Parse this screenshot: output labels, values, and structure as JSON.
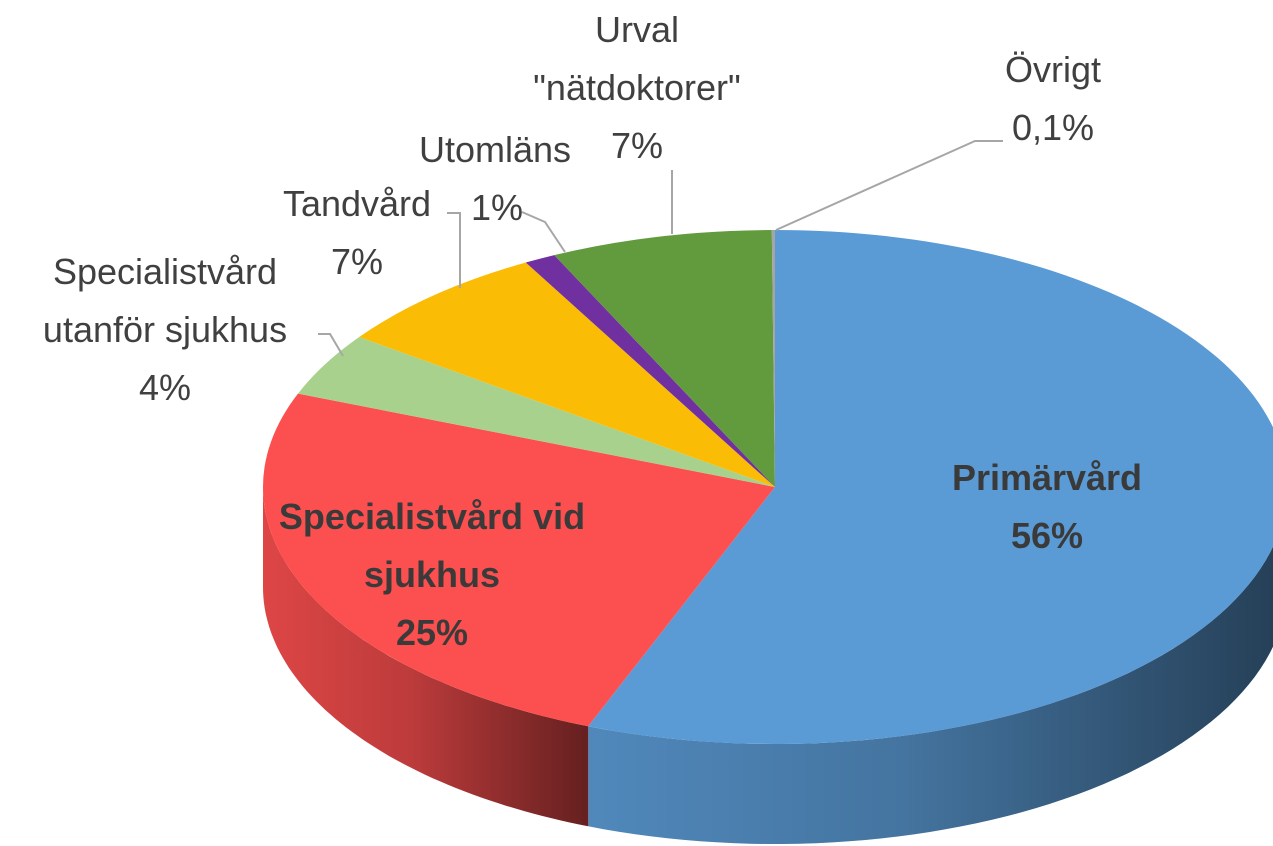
{
  "chart_data": {
    "type": "pie",
    "categories": [
      "Primärvård",
      "Specialistvård vid sjukhus",
      "Specialistvård utanför sjukhus",
      "Tandvård",
      "Utomläns",
      "Urval \"nätdoktorer\"",
      "Övrigt"
    ],
    "values": [
      56,
      25,
      4,
      7,
      1,
      7,
      0.1
    ],
    "value_labels": [
      "56%",
      "25%",
      "4%",
      "7%",
      "1%",
      "7%",
      "0,1%"
    ],
    "colors": [
      "#5b9bd5",
      "#fc4f4f",
      "#a9d18e",
      "#fbbc05",
      "#7030a0",
      "#629a3e",
      "#a5a5a5"
    ]
  }
}
